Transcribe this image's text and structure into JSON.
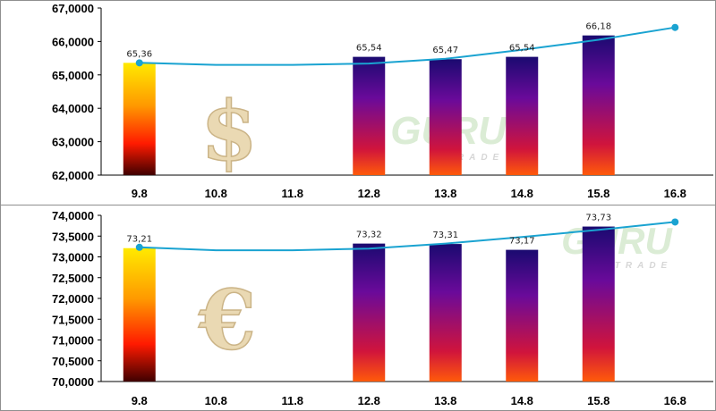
{
  "chart_data": [
    {
      "type": "bar",
      "id": "usd",
      "currency_symbol": "$",
      "categories": [
        "9.8",
        "10.8",
        "11.8",
        "12.8",
        "13.8",
        "14.8",
        "15.8",
        "16.8"
      ],
      "values": [
        65.36,
        null,
        null,
        65.54,
        65.47,
        65.54,
        66.18,
        null
      ],
      "data_labels": [
        "65,36",
        "",
        "",
        "65,54",
        "65,47",
        "65,54",
        "66,18",
        ""
      ],
      "trend_line": [
        65.36,
        65.3,
        65.3,
        65.34,
        65.48,
        65.75,
        66.05,
        66.42
      ],
      "ylim": [
        62,
        67
      ],
      "yticks": [
        "62,0000",
        "63,0000",
        "64,0000",
        "65,0000",
        "66,0000",
        "67,0000"
      ],
      "grid": false,
      "watermark": {
        "main": "GURU",
        "sub": "TRADE"
      }
    },
    {
      "type": "bar",
      "id": "eur",
      "currency_symbol": "€",
      "categories": [
        "9.8",
        "10.8",
        "11.8",
        "12.8",
        "13.8",
        "14.8",
        "15.8",
        "16.8"
      ],
      "values": [
        73.21,
        null,
        null,
        73.32,
        73.31,
        73.17,
        73.73,
        null
      ],
      "data_labels": [
        "73,21",
        "",
        "",
        "73,32",
        "73,31",
        "73,17",
        "73,73",
        ""
      ],
      "trend_line": [
        73.23,
        73.16,
        73.16,
        73.2,
        73.32,
        73.48,
        73.65,
        73.84
      ],
      "ylim": [
        70,
        74
      ],
      "yticks": [
        "70,0000",
        "70,5000",
        "71,0000",
        "71,5000",
        "72,0000",
        "72,5000",
        "73,0000",
        "73,5000",
        "74,0000"
      ],
      "grid": false,
      "watermark": {
        "main": "GURU",
        "sub": "TRADE"
      }
    }
  ],
  "colors": {
    "trend_line": "#1aa3d1",
    "gradient_first_bar": [
      "#ffea00",
      "#ff9900",
      "#ff1a00",
      "#400000"
    ],
    "gradient_bars": [
      "#1a0a70",
      "#6a0a9a",
      "#d0143c",
      "#ff5a0a"
    ],
    "watermark": "#cfe6c7"
  }
}
